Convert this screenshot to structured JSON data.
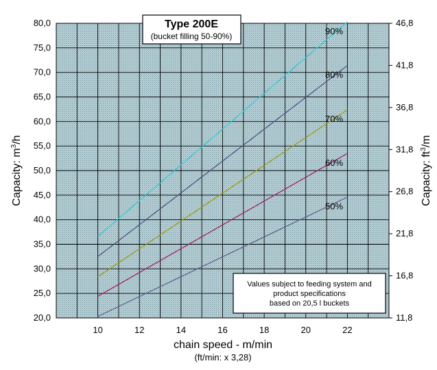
{
  "chart_data": {
    "type": "line",
    "title": "Type 200E",
    "subtitle": "(bucket filling 50-90%)",
    "xlabel": "chain speed - m/min",
    "xlabel_sub": "(ft/min: x 3,28)",
    "ylabel_left_prefix": "Capacity:  m",
    "ylabel_left_sup": "3",
    "ylabel_left_suffix": "/h",
    "ylabel_right_prefix": "Capacity:  ft",
    "ylabel_right_sup": "3",
    "ylabel_right_suffix": "/m",
    "xlim": [
      8,
      24
    ],
    "ylim": [
      20,
      80
    ],
    "x_ticks": [
      10,
      12,
      14,
      16,
      18,
      20,
      22
    ],
    "y_ticks": [
      "20,0",
      "25,0",
      "30,0",
      "35,0",
      "40,0",
      "45,0",
      "50,0",
      "55,0",
      "60,0",
      "65,0",
      "70,0",
      "75,0",
      "80,0"
    ],
    "y_tick_values": [
      20,
      25,
      30,
      35,
      40,
      45,
      50,
      55,
      60,
      65,
      70,
      75,
      80
    ],
    "y2_ticks": [
      "11,8",
      "16,8",
      "21,8",
      "26,8",
      "31,8",
      "36,8",
      "41,8",
      "46,8"
    ],
    "y2_tick_values": [
      11.8,
      16.8,
      21.8,
      26.8,
      31.8,
      36.8,
      41.8,
      46.8
    ],
    "y2_lim": [
      11.8,
      46.8
    ],
    "series": [
      {
        "name": "50%",
        "x": [
          10,
          22
        ],
        "values": [
          20.3,
          44.6
        ],
        "color": "#606090"
      },
      {
        "name": "60%",
        "x": [
          10,
          22
        ],
        "values": [
          24.4,
          53.5
        ],
        "color": "#a0206a"
      },
      {
        "name": "70%",
        "x": [
          10,
          22
        ],
        "values": [
          28.4,
          62.4
        ],
        "color": "#9a9a10"
      },
      {
        "name": "80%",
        "x": [
          10,
          22
        ],
        "values": [
          32.5,
          71.4
        ],
        "color": "#505080"
      },
      {
        "name": "90%",
        "x": [
          10,
          22
        ],
        "values": [
          36.6,
          80.3
        ],
        "color": "#30c8d8"
      }
    ],
    "note": [
      "Values subject to feeding system and",
      "product specifications",
      "based on 20,5 l buckets"
    ]
  }
}
